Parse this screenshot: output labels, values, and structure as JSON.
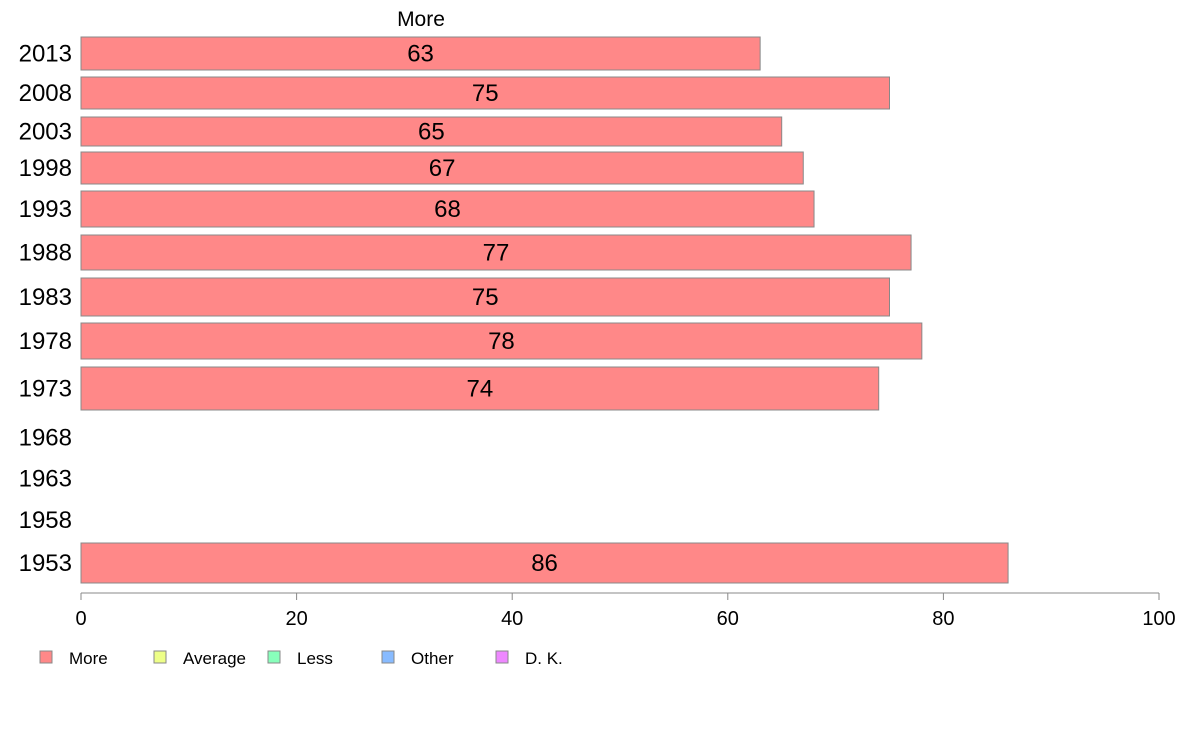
{
  "chart_data": {
    "type": "bar",
    "orientation": "horizontal",
    "title": "More",
    "categories": [
      "2013",
      "2008",
      "2003",
      "1998",
      "1993",
      "1988",
      "1983",
      "1978",
      "1973",
      "1968",
      "1963",
      "1958",
      "1953"
    ],
    "series": [
      {
        "name": "More",
        "color": "#ff8888",
        "values": [
          63,
          75,
          65,
          67,
          68,
          77,
          75,
          78,
          74,
          null,
          null,
          null,
          86
        ]
      }
    ],
    "xlim": [
      0,
      100
    ],
    "xticks": [
      0,
      20,
      40,
      60,
      80,
      100
    ],
    "grid": false,
    "legend": {
      "placement": "bottom-left",
      "entries": [
        {
          "name": "More",
          "color": "#ff8888"
        },
        {
          "name": "Average",
          "color": "#eeff88"
        },
        {
          "name": "Less",
          "color": "#88ffbb"
        },
        {
          "name": "Other",
          "color": "#88bbff"
        },
        {
          "name": "D. K.",
          "color": "#ee88ff"
        }
      ]
    }
  }
}
